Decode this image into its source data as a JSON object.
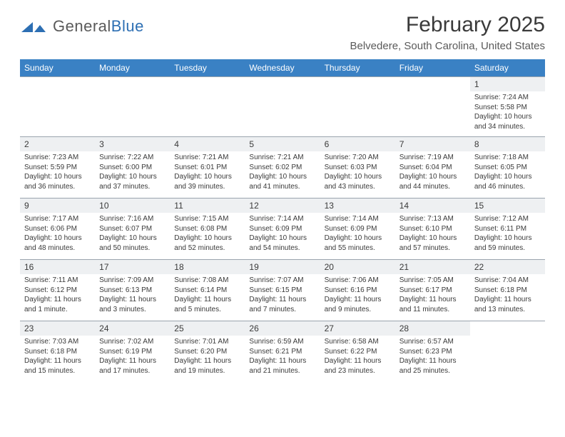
{
  "brand": {
    "word1": "General",
    "word2": "Blue",
    "color1": "#5a5a5a",
    "color2": "#2d6fb3"
  },
  "title": "February 2025",
  "location": "Belvedere, South Carolina, United States",
  "colors": {
    "header_bg": "#3a81c4",
    "header_text": "#ffffff",
    "daynum_bg": "#eef0f2",
    "border": "#9aa4ae",
    "text": "#3a3a3a"
  },
  "weekdays": [
    "Sunday",
    "Monday",
    "Tuesday",
    "Wednesday",
    "Thursday",
    "Friday",
    "Saturday"
  ],
  "weeks": [
    [
      null,
      null,
      null,
      null,
      null,
      null,
      {
        "n": "1",
        "sr": "7:24 AM",
        "ss": "5:58 PM",
        "dl": "10 hours and 34 minutes."
      }
    ],
    [
      {
        "n": "2",
        "sr": "7:23 AM",
        "ss": "5:59 PM",
        "dl": "10 hours and 36 minutes."
      },
      {
        "n": "3",
        "sr": "7:22 AM",
        "ss": "6:00 PM",
        "dl": "10 hours and 37 minutes."
      },
      {
        "n": "4",
        "sr": "7:21 AM",
        "ss": "6:01 PM",
        "dl": "10 hours and 39 minutes."
      },
      {
        "n": "5",
        "sr": "7:21 AM",
        "ss": "6:02 PM",
        "dl": "10 hours and 41 minutes."
      },
      {
        "n": "6",
        "sr": "7:20 AM",
        "ss": "6:03 PM",
        "dl": "10 hours and 43 minutes."
      },
      {
        "n": "7",
        "sr": "7:19 AM",
        "ss": "6:04 PM",
        "dl": "10 hours and 44 minutes."
      },
      {
        "n": "8",
        "sr": "7:18 AM",
        "ss": "6:05 PM",
        "dl": "10 hours and 46 minutes."
      }
    ],
    [
      {
        "n": "9",
        "sr": "7:17 AM",
        "ss": "6:06 PM",
        "dl": "10 hours and 48 minutes."
      },
      {
        "n": "10",
        "sr": "7:16 AM",
        "ss": "6:07 PM",
        "dl": "10 hours and 50 minutes."
      },
      {
        "n": "11",
        "sr": "7:15 AM",
        "ss": "6:08 PM",
        "dl": "10 hours and 52 minutes."
      },
      {
        "n": "12",
        "sr": "7:14 AM",
        "ss": "6:09 PM",
        "dl": "10 hours and 54 minutes."
      },
      {
        "n": "13",
        "sr": "7:14 AM",
        "ss": "6:09 PM",
        "dl": "10 hours and 55 minutes."
      },
      {
        "n": "14",
        "sr": "7:13 AM",
        "ss": "6:10 PM",
        "dl": "10 hours and 57 minutes."
      },
      {
        "n": "15",
        "sr": "7:12 AM",
        "ss": "6:11 PM",
        "dl": "10 hours and 59 minutes."
      }
    ],
    [
      {
        "n": "16",
        "sr": "7:11 AM",
        "ss": "6:12 PM",
        "dl": "11 hours and 1 minute."
      },
      {
        "n": "17",
        "sr": "7:09 AM",
        "ss": "6:13 PM",
        "dl": "11 hours and 3 minutes."
      },
      {
        "n": "18",
        "sr": "7:08 AM",
        "ss": "6:14 PM",
        "dl": "11 hours and 5 minutes."
      },
      {
        "n": "19",
        "sr": "7:07 AM",
        "ss": "6:15 PM",
        "dl": "11 hours and 7 minutes."
      },
      {
        "n": "20",
        "sr": "7:06 AM",
        "ss": "6:16 PM",
        "dl": "11 hours and 9 minutes."
      },
      {
        "n": "21",
        "sr": "7:05 AM",
        "ss": "6:17 PM",
        "dl": "11 hours and 11 minutes."
      },
      {
        "n": "22",
        "sr": "7:04 AM",
        "ss": "6:18 PM",
        "dl": "11 hours and 13 minutes."
      }
    ],
    [
      {
        "n": "23",
        "sr": "7:03 AM",
        "ss": "6:18 PM",
        "dl": "11 hours and 15 minutes."
      },
      {
        "n": "24",
        "sr": "7:02 AM",
        "ss": "6:19 PM",
        "dl": "11 hours and 17 minutes."
      },
      {
        "n": "25",
        "sr": "7:01 AM",
        "ss": "6:20 PM",
        "dl": "11 hours and 19 minutes."
      },
      {
        "n": "26",
        "sr": "6:59 AM",
        "ss": "6:21 PM",
        "dl": "11 hours and 21 minutes."
      },
      {
        "n": "27",
        "sr": "6:58 AM",
        "ss": "6:22 PM",
        "dl": "11 hours and 23 minutes."
      },
      {
        "n": "28",
        "sr": "6:57 AM",
        "ss": "6:23 PM",
        "dl": "11 hours and 25 minutes."
      },
      null
    ]
  ],
  "labels": {
    "sunrise": "Sunrise:",
    "sunset": "Sunset:",
    "daylight": "Daylight:"
  }
}
